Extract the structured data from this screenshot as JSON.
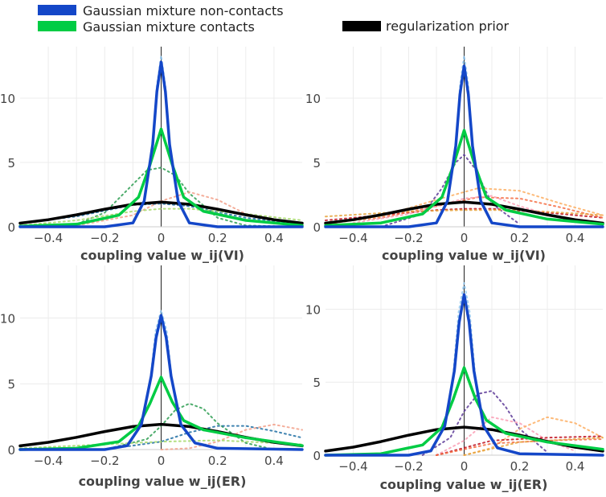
{
  "legend": [
    {
      "label": "Gaussian mixture non-contacts",
      "color": "#1447c8"
    },
    {
      "label": "Gaussian mixture contacts",
      "color": "#00cc44"
    },
    {
      "label": "regularization prior",
      "color": "#000000"
    }
  ],
  "chart_data": [
    {
      "type": "line",
      "xlabel": "coupling value w_ij(VI)",
      "xlim": [
        -0.5,
        0.5
      ],
      "ylim": [
        0,
        14
      ],
      "xticks": [
        "−0.4",
        "−0.2",
        "0",
        "0.2",
        "0.4"
      ],
      "yticks": [
        "0",
        "5",
        "10"
      ],
      "grid": true,
      "series": [
        {
          "name": "Gaussian mixture non-contacts",
          "role": "mixture-noncontact",
          "color": "#1447c8",
          "x": [
            -0.5,
            -0.2,
            -0.1,
            -0.06,
            -0.03,
            -0.015,
            0,
            0.015,
            0.03,
            0.06,
            0.1,
            0.2,
            0.5
          ],
          "y": [
            0,
            0,
            0.3,
            2.0,
            6.4,
            10.5,
            12.8,
            10.5,
            6.4,
            2.0,
            0.3,
            0,
            0
          ]
        },
        {
          "name": "Gaussian mixture contacts",
          "role": "mixture-contact",
          "color": "#00cc44",
          "x": [
            -0.5,
            -0.3,
            -0.15,
            -0.08,
            -0.04,
            0,
            0.04,
            0.08,
            0.15,
            0.3,
            0.5
          ],
          "y": [
            0.05,
            0.2,
            0.9,
            2.3,
            4.8,
            7.6,
            4.8,
            2.3,
            1.2,
            0.5,
            0.1
          ]
        },
        {
          "name": "regularization prior",
          "role": "prior",
          "color": "#000000",
          "x": [
            -0.5,
            -0.4,
            -0.3,
            -0.2,
            -0.1,
            0,
            0.1,
            0.2,
            0.3,
            0.4,
            0.5
          ],
          "y": [
            0.28,
            0.55,
            0.93,
            1.37,
            1.75,
            1.92,
            1.75,
            1.37,
            0.93,
            0.55,
            0.28
          ]
        },
        {
          "role": "component",
          "color": "#2e9e52",
          "x": [
            -0.5,
            -0.3,
            -0.2,
            -0.1,
            -0.05,
            0,
            0.05,
            0.1,
            0.2,
            0.3,
            0.5
          ],
          "y": [
            0,
            0.2,
            1.1,
            3.3,
            4.4,
            4.6,
            4.0,
            2.6,
            0.7,
            0.1,
            0
          ]
        },
        {
          "role": "component",
          "color": "#f2a08a",
          "x": [
            -0.5,
            -0.3,
            -0.1,
            0,
            0.1,
            0.2,
            0.3,
            0.5
          ],
          "y": [
            0,
            0.1,
            0.9,
            2.0,
            2.7,
            2.1,
            1.0,
            0.1
          ]
        },
        {
          "role": "component",
          "color": "#1f6fa3",
          "x": [
            -0.5,
            -0.3,
            -0.1,
            0,
            0.1,
            0.3,
            0.5
          ],
          "y": [
            0.3,
            0.8,
            1.7,
            1.8,
            1.6,
            0.7,
            0.2
          ]
        },
        {
          "role": "component",
          "color": "#a6d96a",
          "x": [
            -0.5,
            -0.3,
            -0.1,
            0,
            0.1,
            0.3,
            0.5
          ],
          "y": [
            0.1,
            0.5,
            1.2,
            1.4,
            1.4,
            1.0,
            0.5
          ]
        },
        {
          "role": "component",
          "color": "#8ec5f0",
          "x": [
            -0.03,
            -0.015,
            0,
            0.015,
            0.03
          ],
          "y": [
            6.0,
            11.0,
            13.3,
            11.0,
            6.0
          ]
        }
      ]
    },
    {
      "type": "line",
      "xlabel": "coupling value w_ij(VI)",
      "xlim": [
        -0.5,
        0.5
      ],
      "ylim": [
        0,
        14
      ],
      "xticks": [
        "−0.4",
        "−0.2",
        "0",
        "0.2",
        "0.4"
      ],
      "yticks": [
        "0",
        "5",
        "10"
      ],
      "grid": true,
      "series": [
        {
          "name": "Gaussian mixture non-contacts",
          "role": "mixture-noncontact",
          "color": "#1447c8",
          "x": [
            -0.5,
            -0.2,
            -0.1,
            -0.06,
            -0.03,
            -0.015,
            0,
            0.015,
            0.03,
            0.06,
            0.1,
            0.2,
            0.5
          ],
          "y": [
            0,
            0,
            0.3,
            2.0,
            6.3,
            10.3,
            12.5,
            10.3,
            6.3,
            2.0,
            0.3,
            0,
            0
          ]
        },
        {
          "name": "Gaussian mixture contacts",
          "role": "mixture-contact",
          "color": "#00cc44",
          "x": [
            -0.5,
            -0.3,
            -0.15,
            -0.08,
            -0.04,
            0,
            0.04,
            0.08,
            0.15,
            0.3,
            0.5
          ],
          "y": [
            0.1,
            0.3,
            1.0,
            2.3,
            4.7,
            7.5,
            4.7,
            2.3,
            1.3,
            0.6,
            0.2
          ]
        },
        {
          "name": "regularization prior",
          "role": "prior",
          "color": "#000000",
          "x": [
            -0.5,
            -0.4,
            -0.3,
            -0.2,
            -0.1,
            0,
            0.1,
            0.2,
            0.3,
            0.4,
            0.5
          ],
          "y": [
            0.28,
            0.55,
            0.93,
            1.37,
            1.75,
            1.92,
            1.75,
            1.37,
            0.93,
            0.55,
            0.28
          ]
        },
        {
          "role": "component",
          "color": "#c0111f",
          "x": [
            -0.5,
            -0.3,
            -0.1,
            0,
            0.1,
            0.3,
            0.5
          ],
          "y": [
            0.5,
            0.9,
            1.3,
            1.4,
            1.4,
            1.1,
            0.7
          ]
        },
        {
          "role": "component",
          "color": "#f46d43",
          "x": [
            -0.5,
            -0.3,
            -0.1,
            0.05,
            0.2,
            0.35,
            0.5
          ],
          "y": [
            0.3,
            0.7,
            1.6,
            2.3,
            2.2,
            1.5,
            0.7
          ]
        },
        {
          "role": "component",
          "color": "#5e3c99",
          "x": [
            -0.3,
            -0.15,
            -0.08,
            -0.03,
            0,
            0.04,
            0.1,
            0.2
          ],
          "y": [
            0,
            1.0,
            3.0,
            5.0,
            5.6,
            4.5,
            1.8,
            0.2
          ]
        },
        {
          "role": "component",
          "color": "#e6a33c",
          "x": [
            -0.5,
            -0.2,
            0,
            0.2,
            0.5
          ],
          "y": [
            0.8,
            1.2,
            1.3,
            1.3,
            0.9
          ]
        },
        {
          "role": "component",
          "color": "#fdae61",
          "x": [
            -0.5,
            -0.3,
            -0.1,
            0.05,
            0.2,
            0.35,
            0.5
          ],
          "y": [
            0.2,
            0.8,
            2.1,
            3.0,
            2.8,
            1.8,
            0.9
          ]
        },
        {
          "role": "component",
          "color": "#fa9fb5",
          "x": [
            -0.4,
            -0.2,
            0,
            0.1,
            0.2,
            0.4
          ],
          "y": [
            0.3,
            1.0,
            2.2,
            2.4,
            1.6,
            0.4
          ]
        },
        {
          "role": "component",
          "color": "#8ec5f0",
          "x": [
            -0.03,
            -0.015,
            0,
            0.015,
            0.03
          ],
          "y": [
            6.0,
            11.0,
            13.3,
            11.0,
            6.0
          ]
        }
      ]
    },
    {
      "type": "line",
      "xlabel": "coupling value w_ij(ER)",
      "xlim": [
        -0.5,
        0.5
      ],
      "ylim": [
        0,
        14
      ],
      "xticks": [
        "−0.4",
        "−0.2",
        "0",
        "0.2",
        "0.4"
      ],
      "yticks": [
        "0",
        "5",
        "10"
      ],
      "grid": true,
      "series": [
        {
          "name": "Gaussian mixture non-contacts",
          "role": "mixture-noncontact",
          "color": "#1447c8",
          "x": [
            -0.5,
            -0.2,
            -0.12,
            -0.07,
            -0.035,
            -0.018,
            0,
            0.018,
            0.035,
            0.07,
            0.12,
            0.2,
            0.5
          ],
          "y": [
            0,
            0,
            0.3,
            1.9,
            5.6,
            8.5,
            10.2,
            8.5,
            5.6,
            1.9,
            0.5,
            0.1,
            0
          ]
        },
        {
          "name": "Gaussian mixture contacts",
          "role": "mixture-contact",
          "color": "#00cc44",
          "x": [
            -0.5,
            -0.3,
            -0.15,
            -0.08,
            -0.04,
            0,
            0.04,
            0.08,
            0.15,
            0.3,
            0.5
          ],
          "y": [
            0,
            0.1,
            0.6,
            1.8,
            3.5,
            5.5,
            3.6,
            2.2,
            1.5,
            0.9,
            0.3
          ]
        },
        {
          "name": "regularization prior",
          "role": "prior",
          "color": "#000000",
          "x": [
            -0.5,
            -0.4,
            -0.3,
            -0.2,
            -0.1,
            0,
            0.1,
            0.2,
            0.3,
            0.4,
            0.5
          ],
          "y": [
            0.28,
            0.55,
            0.93,
            1.37,
            1.75,
            1.92,
            1.75,
            1.37,
            0.93,
            0.55,
            0.28
          ]
        },
        {
          "role": "component",
          "color": "#2e9e52",
          "x": [
            -0.2,
            -0.05,
            0,
            0.05,
            0.1,
            0.15,
            0.2,
            0.3,
            0.4
          ],
          "y": [
            0,
            0.8,
            1.8,
            3.0,
            3.5,
            3.1,
            2.0,
            0.5,
            0
          ]
        },
        {
          "role": "component",
          "color": "#1f6fa3",
          "x": [
            -0.2,
            0,
            0.1,
            0.2,
            0.3,
            0.4,
            0.5
          ],
          "y": [
            0,
            0.6,
            1.3,
            1.8,
            1.8,
            1.4,
            0.9
          ]
        },
        {
          "role": "component",
          "color": "#f2a08a",
          "x": [
            0,
            0.1,
            0.2,
            0.3,
            0.4,
            0.5
          ],
          "y": [
            0,
            0.1,
            0.6,
            1.5,
            1.9,
            1.5
          ]
        },
        {
          "role": "component",
          "color": "#a6d96a",
          "x": [
            -0.5,
            -0.2,
            0,
            0.2,
            0.5
          ],
          "y": [
            0.1,
            0.4,
            0.6,
            0.7,
            0.4
          ]
        },
        {
          "role": "component",
          "color": "#8ec5f0",
          "x": [
            -0.04,
            -0.02,
            0,
            0.02,
            0.04
          ],
          "y": [
            5.0,
            9.0,
            10.6,
            9.0,
            5.0
          ]
        }
      ]
    },
    {
      "type": "line",
      "xlabel": "coupling value w_ij(ER)",
      "xlim": [
        -0.5,
        0.5
      ],
      "ylim": [
        0,
        13
      ],
      "xticks": [
        "−0.4",
        "−0.2",
        "0",
        "0.2",
        "0.4"
      ],
      "yticks": [
        "0",
        "5",
        "10"
      ],
      "grid": true,
      "series": [
        {
          "name": "Gaussian mixture non-contacts",
          "role": "mixture-noncontact",
          "color": "#1447c8",
          "x": [
            -0.5,
            -0.2,
            -0.12,
            -0.07,
            -0.035,
            -0.018,
            0,
            0.018,
            0.035,
            0.07,
            0.12,
            0.2,
            0.5
          ],
          "y": [
            0,
            0,
            0.3,
            2.0,
            5.8,
            9.1,
            11.0,
            9.1,
            5.8,
            2.0,
            0.5,
            0.1,
            0
          ]
        },
        {
          "name": "Gaussian mixture contacts",
          "role": "mixture-contact",
          "color": "#00cc44",
          "x": [
            -0.5,
            -0.3,
            -0.15,
            -0.08,
            -0.04,
            0,
            0.04,
            0.08,
            0.15,
            0.3,
            0.5
          ],
          "y": [
            0,
            0.1,
            0.7,
            1.9,
            3.8,
            6.0,
            3.9,
            2.4,
            1.5,
            0.9,
            0.4
          ]
        },
        {
          "name": "regularization prior",
          "role": "prior",
          "color": "#000000",
          "x": [
            -0.5,
            -0.4,
            -0.3,
            -0.2,
            -0.1,
            0,
            0.1,
            0.2,
            0.3,
            0.4,
            0.5
          ],
          "y": [
            0.28,
            0.55,
            0.93,
            1.37,
            1.75,
            1.92,
            1.75,
            1.37,
            0.93,
            0.55,
            0.28
          ]
        },
        {
          "role": "component",
          "color": "#5e3c99",
          "x": [
            -0.15,
            -0.05,
            0,
            0.05,
            0.1,
            0.15,
            0.2,
            0.3
          ],
          "y": [
            0,
            1.2,
            3.0,
            4.2,
            4.4,
            3.3,
            1.8,
            0.2
          ]
        },
        {
          "role": "component",
          "color": "#fa9fb5",
          "x": [
            -0.1,
            0,
            0.1,
            0.2,
            0.3,
            0.4
          ],
          "y": [
            0,
            1.0,
            2.6,
            2.2,
            1.0,
            0.3
          ]
        },
        {
          "role": "component",
          "color": "#fdae61",
          "x": [
            0,
            0.1,
            0.2,
            0.3,
            0.4,
            0.5
          ],
          "y": [
            0,
            0.5,
            1.8,
            2.6,
            2.2,
            1.2
          ]
        },
        {
          "role": "component",
          "color": "#c0111f",
          "x": [
            -0.1,
            0.1,
            0.3,
            0.5
          ],
          "y": [
            0,
            1.0,
            1.2,
            1.3
          ]
        },
        {
          "role": "component",
          "color": "#f46d43",
          "x": [
            -0.1,
            0.1,
            0.3,
            0.5
          ],
          "y": [
            0,
            0.8,
            1.0,
            1.1
          ]
        },
        {
          "role": "component",
          "color": "#e6a33c",
          "x": [
            0,
            0.2,
            0.4,
            0.5
          ],
          "y": [
            0,
            0.9,
            1.1,
            1.2
          ]
        },
        {
          "role": "component",
          "color": "#8ec5f0",
          "x": [
            -0.04,
            -0.02,
            0,
            0.02,
            0.04
          ],
          "y": [
            5.5,
            9.8,
            11.8,
            9.8,
            5.5
          ]
        }
      ]
    }
  ]
}
